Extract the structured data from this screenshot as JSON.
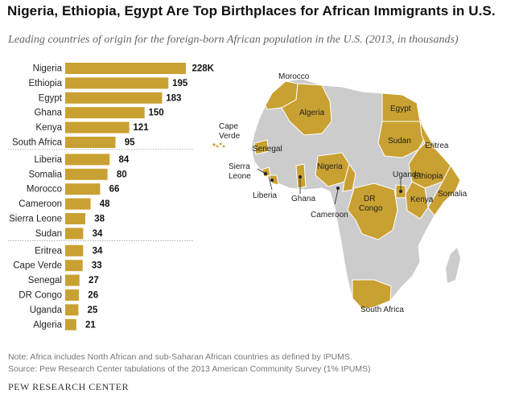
{
  "title": "Nigeria, Ethiopia, Egypt Are Top Birthplaces for African Immigrants in U.S.",
  "subtitle": "Leading countries of origin for the foreign-born African population in the U.S. (2013, in thousands)",
  "chart_data": {
    "type": "bar",
    "orientation": "horizontal",
    "categories": [
      "Nigeria",
      "Ethiopia",
      "Egypt",
      "Ghana",
      "Kenya",
      "South Africa",
      "Liberia",
      "Somalia",
      "Morocco",
      "Cameroon",
      "Sierra Leone",
      "Sudan",
      "Eritrea",
      "Cape Verde",
      "Senegal",
      "DR Congo",
      "Uganda",
      "Algeria"
    ],
    "values": [
      228,
      195,
      183,
      150,
      121,
      95,
      84,
      80,
      66,
      48,
      38,
      34,
      34,
      33,
      27,
      26,
      25,
      21
    ],
    "value_labels": [
      "228K",
      "195",
      "183",
      "150",
      "121",
      "95",
      "84",
      "80",
      "66",
      "48",
      "38",
      "34",
      "34",
      "33",
      "27",
      "26",
      "25",
      "21"
    ],
    "groups": [
      6,
      6,
      6
    ],
    "bar_color": "#c9a132",
    "xlabel": "",
    "ylabel": ""
  },
  "map": {
    "labels": [
      "Morocco",
      "Algeria",
      "Egypt",
      "Cape Verde",
      "Senegal",
      "Sudan",
      "Eritrea",
      "Nigeria",
      "Ethiopia",
      "Sierra Leone",
      "Uganda",
      "Liberia",
      "Ghana",
      "Somalia",
      "DR Congo",
      "Kenya",
      "Cameroon",
      "South Africa"
    ],
    "highlight_color": "#c9a132",
    "land_color": "#cccccc"
  },
  "footer": {
    "note": "Note: Africa includes North African and sub-Saharan African countries as defined by IPUMS.",
    "source": "Source: Pew Research Center tabulations of the 2013 American Community Survey (1% IPUMS)",
    "brand": "PEW RESEARCH CENTER"
  }
}
